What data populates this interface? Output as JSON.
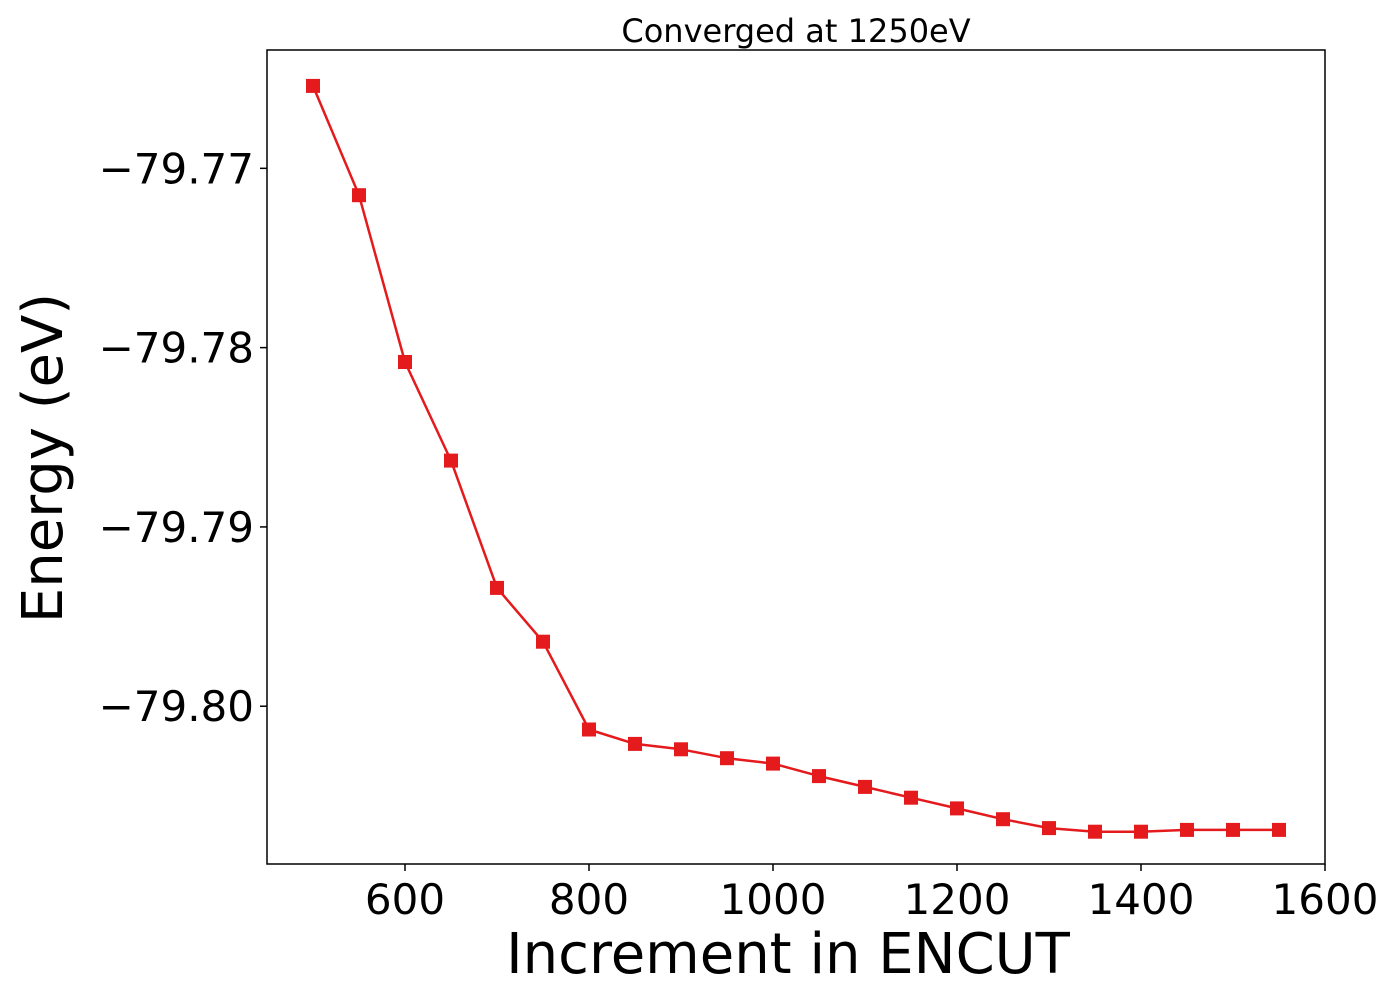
{
  "chart_data": {
    "type": "line",
    "title": "Converged at 1250eV",
    "xlabel": "Increment in ENCUT",
    "ylabel": "Energy (eV)",
    "xlim": [
      450,
      1600
    ],
    "ylim": [
      -79.8088,
      -79.7634
    ],
    "x_ticks": [
      {
        "value": 600,
        "label": "600"
      },
      {
        "value": 800,
        "label": "800"
      },
      {
        "value": 1000,
        "label": "1000"
      },
      {
        "value": 1200,
        "label": "1200"
      },
      {
        "value": 1400,
        "label": "1400"
      },
      {
        "value": 1600,
        "label": "1600"
      }
    ],
    "y_ticks": [
      {
        "value": -79.77,
        "label": "−79.77"
      },
      {
        "value": -79.78,
        "label": "−79.78"
      },
      {
        "value": -79.79,
        "label": "−79.79"
      },
      {
        "value": -79.8,
        "label": "−79.80"
      }
    ],
    "grid": false,
    "series": [
      {
        "color": "#e41a1c",
        "marker": "square",
        "x": [
          500,
          550,
          600,
          650,
          700,
          750,
          800,
          850,
          900,
          950,
          1000,
          1050,
          1100,
          1150,
          1200,
          1250,
          1300,
          1350,
          1400,
          1450,
          1500,
          1550
        ],
        "y": [
          -79.7654,
          -79.7715,
          -79.7808,
          -79.7863,
          -79.7934,
          -79.7964,
          -79.8013,
          -79.8021,
          -79.8024,
          -79.8029,
          -79.8032,
          -79.8039,
          -79.8045,
          -79.8051,
          -79.8057,
          -79.8063,
          -79.8068,
          -79.807,
          -79.807,
          -79.8069,
          -79.8069,
          -79.8069
        ]
      }
    ]
  }
}
